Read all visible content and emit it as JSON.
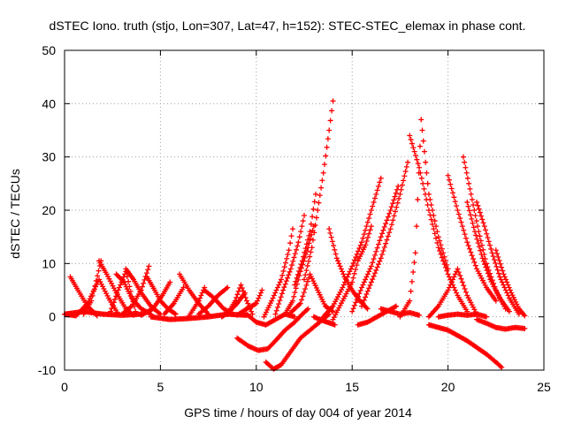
{
  "chart_data": {
    "type": "scatter",
    "title": "dSTEC Iono. truth (stjo, Lon=307, Lat=47, h=152): STEC-STEC_elemax in phase cont.",
    "xlabel": "GPS time / hours of day 004 of year 2014",
    "ylabel": "dSTEC  / TECUs",
    "xlim": [
      0,
      25
    ],
    "ylim": [
      -10,
      50
    ],
    "xticks": [
      0,
      5,
      10,
      15,
      20,
      25
    ],
    "yticks": [
      -10,
      0,
      10,
      20,
      30,
      40,
      50
    ],
    "xtick_labels": [
      "0",
      "5",
      "10",
      "15",
      "20",
      "25"
    ],
    "ytick_labels": [
      "-10",
      "0",
      "10",
      "20",
      "30",
      "40",
      "50"
    ],
    "grid": true,
    "legend": "none",
    "marker": "plus",
    "color": "#ff0000",
    "series": [
      {
        "x": [
          0.0,
          0.6,
          1.2,
          1.8,
          2.3,
          2.8
        ],
        "y": [
          0.5,
          0.2,
          2.5,
          7.0,
          3.5,
          0.5
        ]
      },
      {
        "x": [
          0.3,
          0.7,
          1.2,
          1.7
        ],
        "y": [
          7.5,
          5.0,
          2.0,
          0.2
        ]
      },
      {
        "x": [
          0.0,
          1.0,
          2.0,
          3.0,
          4.0
        ],
        "y": [
          0.5,
          1.0,
          0.5,
          0.3,
          0.5
        ]
      },
      {
        "x": [
          1.8,
          2.2,
          2.7,
          3.2,
          3.6
        ],
        "y": [
          10.5,
          8.0,
          4.5,
          1.5,
          0.3
        ]
      },
      {
        "x": [
          1.0,
          1.4,
          1.9
        ],
        "y": [
          0.5,
          3.0,
          10.5
        ]
      },
      {
        "x": [
          2.4,
          2.8,
          3.2,
          3.7
        ],
        "y": [
          1.0,
          5.0,
          8.5,
          1.0
        ]
      },
      {
        "x": [
          2.7,
          3.1,
          3.5,
          4.0,
          4.5
        ],
        "y": [
          8.0,
          6.5,
          3.5,
          1.5,
          0.5
        ]
      },
      {
        "x": [
          3.2,
          3.6,
          4.0,
          4.5,
          5.0
        ],
        "y": [
          9.0,
          7.0,
          4.5,
          2.0,
          0.5
        ]
      },
      {
        "x": [
          3.0,
          3.5,
          4.0,
          4.4
        ],
        "y": [
          0.5,
          2.0,
          5.0,
          9.5
        ]
      },
      {
        "x": [
          4.3,
          4.7,
          5.0,
          5.4,
          5.8
        ],
        "y": [
          7.5,
          5.0,
          3.0,
          1.5,
          0.5
        ]
      },
      {
        "x": [
          4.0,
          4.6,
          5.1,
          5.5
        ],
        "y": [
          0.3,
          1.5,
          4.0,
          6.5
        ]
      },
      {
        "x": [
          4.5,
          5.5,
          6.5,
          7.5,
          8.5,
          9.5
        ],
        "y": [
          0.0,
          -0.5,
          -0.3,
          0.0,
          0.5,
          0.3
        ]
      },
      {
        "x": [
          5.2,
          5.7,
          6.2
        ],
        "y": [
          0.5,
          2.5,
          5.5
        ]
      },
      {
        "x": [
          6.0,
          6.5,
          7.0,
          7.5
        ],
        "y": [
          8.0,
          5.0,
          2.5,
          0.5
        ]
      },
      {
        "x": [
          6.5,
          7.0,
          7.3
        ],
        "y": [
          0.2,
          3.0,
          5.5
        ]
      },
      {
        "x": [
          7.0,
          7.5,
          8.0,
          8.5
        ],
        "y": [
          0.5,
          2.0,
          4.0,
          5.5
        ]
      },
      {
        "x": [
          7.3,
          7.8,
          8.3,
          8.8
        ],
        "y": [
          5.0,
          3.5,
          1.5,
          0.5
        ]
      },
      {
        "x": [
          8.5,
          8.9,
          9.2,
          9.5,
          9.8
        ],
        "y": [
          0.5,
          3.0,
          6.0,
          3.0,
          0.5
        ]
      },
      {
        "x": [
          8.2,
          8.6,
          9.0,
          9.4
        ],
        "y": [
          0.0,
          1.0,
          2.5,
          4.5
        ]
      },
      {
        "x": [
          9.0,
          9.5,
          10.0,
          10.3
        ],
        "y": [
          0.3,
          1.5,
          2.5,
          5.0
        ]
      },
      {
        "x": [
          9.5,
          10.0,
          10.5,
          11.0,
          11.5,
          12.0
        ],
        "y": [
          0.5,
          -1.0,
          -1.5,
          -0.5,
          0.5,
          0.0
        ]
      },
      {
        "x": [
          9.0,
          9.6,
          10.1,
          10.6,
          11.0,
          11.5,
          12.0,
          12.4,
          12.7
        ],
        "y": [
          -4.0,
          -5.5,
          -6.3,
          -6.0,
          -4.5,
          -2.5,
          -1.0,
          0.5,
          1.5
        ]
      },
      {
        "x": [
          10.5,
          10.9,
          11.3,
          11.8,
          12.3,
          12.8,
          13.3,
          13.8
        ],
        "y": [
          -8.5,
          -9.8,
          -9.0,
          -6.5,
          -4.0,
          -2.5,
          -1.0,
          0.5
        ]
      },
      {
        "x": [
          10.4,
          10.8,
          11.3,
          11.7,
          11.9
        ],
        "y": [
          0.0,
          3.0,
          7.0,
          12.5,
          16.5
        ]
      },
      {
        "x": [
          11.0,
          11.4,
          11.8,
          12.2,
          12.5
        ],
        "y": [
          0.5,
          5.0,
          9.0,
          14.0,
          19.0
        ]
      },
      {
        "x": [
          11.5,
          11.9,
          12.3,
          12.7,
          13.0
        ],
        "y": [
          0.5,
          3.0,
          8.5,
          13.0,
          17.0
        ]
      },
      {
        "x": [
          12.0,
          12.4,
          12.8,
          13.1
        ],
        "y": [
          6.0,
          10.5,
          16.0,
          23.0
        ]
      },
      {
        "x": [
          12.5,
          12.9,
          13.2,
          13.5,
          13.8,
          14.0
        ],
        "y": [
          7.0,
          13.0,
          20.0,
          27.0,
          35.0,
          40.5
        ]
      },
      {
        "x": [
          11.8,
          12.3,
          12.8,
          13.2,
          13.6,
          14.0
        ],
        "y": [
          0.8,
          2.5,
          8.0,
          5.0,
          2.0,
          1.0
        ]
      },
      {
        "x": [
          13.0,
          13.3,
          13.7,
          14.1
        ],
        "y": [
          0.0,
          -0.5,
          -1.0,
          -1.5
        ]
      },
      {
        "x": [
          13.8,
          14.2,
          14.6,
          15.0,
          15.4,
          15.8
        ],
        "y": [
          16.5,
          11.0,
          7.5,
          5.0,
          3.0,
          1.5
        ]
      },
      {
        "x": [
          13.5,
          14.0,
          14.5,
          15.0,
          15.5,
          16.0,
          16.5
        ],
        "y": [
          0.0,
          2.0,
          5.5,
          9.5,
          14.0,
          20.0,
          26.0
        ]
      },
      {
        "x": [
          14.0,
          14.5,
          15.0,
          15.3,
          15.7,
          16.0
        ],
        "y": [
          -0.5,
          3.0,
          6.5,
          10.5,
          13.5,
          17.0
        ]
      },
      {
        "x": [
          15.0,
          15.5,
          16.0,
          16.5,
          17.0,
          17.4
        ],
        "y": [
          1.0,
          5.5,
          9.5,
          15.0,
          20.0,
          24.5
        ]
      },
      {
        "x": [
          15.5,
          16.0,
          16.5,
          17.0,
          17.5,
          17.9
        ],
        "y": [
          2.0,
          6.5,
          11.0,
          16.5,
          23.0,
          29.0
        ]
      },
      {
        "x": [
          16.5,
          17.0,
          17.5,
          18.0,
          18.5
        ],
        "y": [
          1.5,
          1.0,
          0.5,
          0.8,
          0.3
        ]
      },
      {
        "x": [
          15.3,
          15.8,
          16.3,
          16.8,
          17.3
        ],
        "y": [
          -1.5,
          -1.0,
          0.0,
          1.0,
          2.0
        ]
      },
      {
        "x": [
          17.5,
          18.0,
          18.3,
          18.6,
          19.0,
          19.5,
          20.0
        ],
        "y": [
          0.0,
          3.0,
          12.0,
          37.0,
          23.0,
          15.0,
          9.0
        ]
      },
      {
        "x": [
          18.0,
          18.5,
          19.0,
          19.5,
          20.0,
          20.5,
          21.0
        ],
        "y": [
          34.0,
          28.0,
          20.0,
          13.0,
          8.0,
          4.0,
          1.0
        ]
      },
      {
        "x": [
          19.0,
          19.5,
          20.0,
          20.5,
          21.0,
          21.5
        ],
        "y": [
          0.0,
          2.0,
          5.0,
          9.0,
          4.0,
          0.5
        ]
      },
      {
        "x": [
          19.5,
          20.0,
          20.5,
          21.0,
          21.5,
          22.0
        ],
        "y": [
          0.0,
          0.3,
          0.5,
          0.3,
          0.5,
          0.0
        ]
      },
      {
        "x": [
          20.0,
          20.5,
          21.0,
          21.5,
          22.0,
          22.5
        ],
        "y": [
          26.5,
          20.0,
          14.0,
          9.0,
          5.5,
          3.0
        ]
      },
      {
        "x": [
          20.8,
          21.2,
          21.6,
          22.0,
          22.5,
          23.0
        ],
        "y": [
          30.0,
          23.0,
          16.0,
          10.0,
          5.0,
          1.5
        ]
      },
      {
        "x": [
          21.0,
          21.4,
          21.8,
          22.2,
          22.7,
          23.2
        ],
        "y": [
          21.5,
          16.0,
          11.0,
          7.0,
          3.5,
          1.0
        ]
      },
      {
        "x": [
          21.5,
          21.9,
          22.3,
          22.7,
          23.2,
          23.7
        ],
        "y": [
          21.5,
          17.0,
          12.0,
          7.5,
          3.5,
          0.5
        ]
      },
      {
        "x": [
          22.5,
          22.9,
          23.3,
          23.7,
          24.0
        ],
        "y": [
          12.5,
          8.0,
          4.5,
          1.5,
          0.2
        ]
      },
      {
        "x": [
          19.0,
          20.0,
          21.0,
          22.0,
          22.5,
          22.8
        ],
        "y": [
          -1.5,
          -2.5,
          -4.5,
          -7.0,
          -8.5,
          -9.5
        ]
      },
      {
        "x": [
          21.5,
          22.0,
          22.5,
          23.0,
          23.5,
          24.0
        ],
        "y": [
          -0.5,
          -1.2,
          -2.0,
          -2.3,
          -2.0,
          -2.2
        ]
      }
    ]
  }
}
